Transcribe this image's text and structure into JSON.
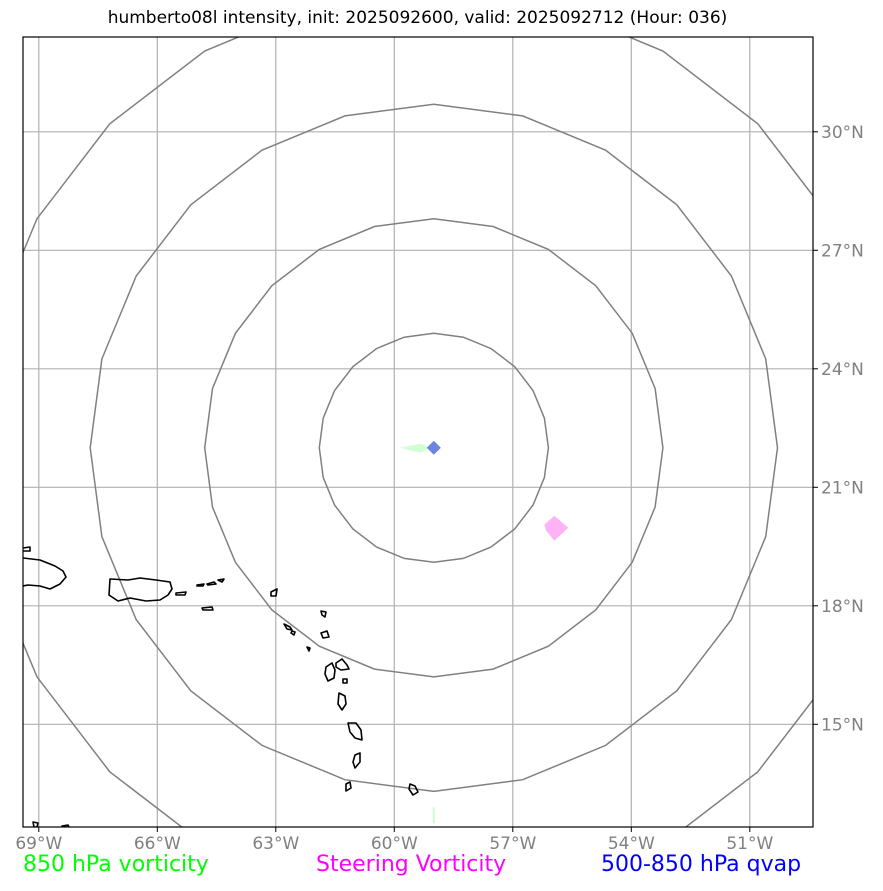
{
  "title": "humberto08l intensity, init: 2025092600, valid: 2025092712 (Hour: 036)",
  "map": {
    "lon_range": [
      -69.4,
      -49.4
    ],
    "lat_range": [
      12.4,
      32.4
    ],
    "lon_ticks": [
      {
        "value": -69,
        "label": "69°W"
      },
      {
        "value": -66,
        "label": "66°W"
      },
      {
        "value": -63,
        "label": "63°W"
      },
      {
        "value": -60,
        "label": "60°W"
      },
      {
        "value": -57,
        "label": "57°W"
      },
      {
        "value": -54,
        "label": "54°W"
      },
      {
        "value": -51,
        "label": "51°W"
      }
    ],
    "lat_ticks": [
      {
        "value": 15,
        "label": "15°N"
      },
      {
        "value": 18,
        "label": "18°N"
      },
      {
        "value": 21,
        "label": "21°N"
      },
      {
        "value": 24,
        "label": "24°N"
      },
      {
        "value": 27,
        "label": "27°N"
      },
      {
        "value": 30,
        "label": "30°N"
      }
    ],
    "gridlines": true,
    "center": {
      "lon": -59.0,
      "lat": 22.0
    },
    "range_rings_deg": [
      2.9,
      5.8,
      8.7,
      11.6
    ],
    "colors": {
      "grid": "#b0b0b0",
      "rings": "#808080",
      "coast": "#000000",
      "tick_label": "#808080",
      "vorticity_850": "#00ff00",
      "steering_vorticity": "#ff00ff",
      "qvap": "#0000ff"
    },
    "features": [
      {
        "name": "850 hPa vorticity",
        "lon": -59.4,
        "lat": 22.0,
        "color": "#ccffcc"
      },
      {
        "name": "500-850 hPa qvap",
        "lon": -59.0,
        "lat": 22.0,
        "color": "#6b84e0"
      },
      {
        "name": "Steering Vorticity",
        "lon": -55.9,
        "lat": 20.0,
        "color": "#ffb3f5"
      }
    ]
  },
  "legend": [
    {
      "label": "850 hPa vorticity",
      "color": "#00ff00"
    },
    {
      "label": "Steering Vorticity",
      "color": "#ff00ff"
    },
    {
      "label": "500-850 hPa qvap",
      "color": "#0000ff"
    }
  ]
}
